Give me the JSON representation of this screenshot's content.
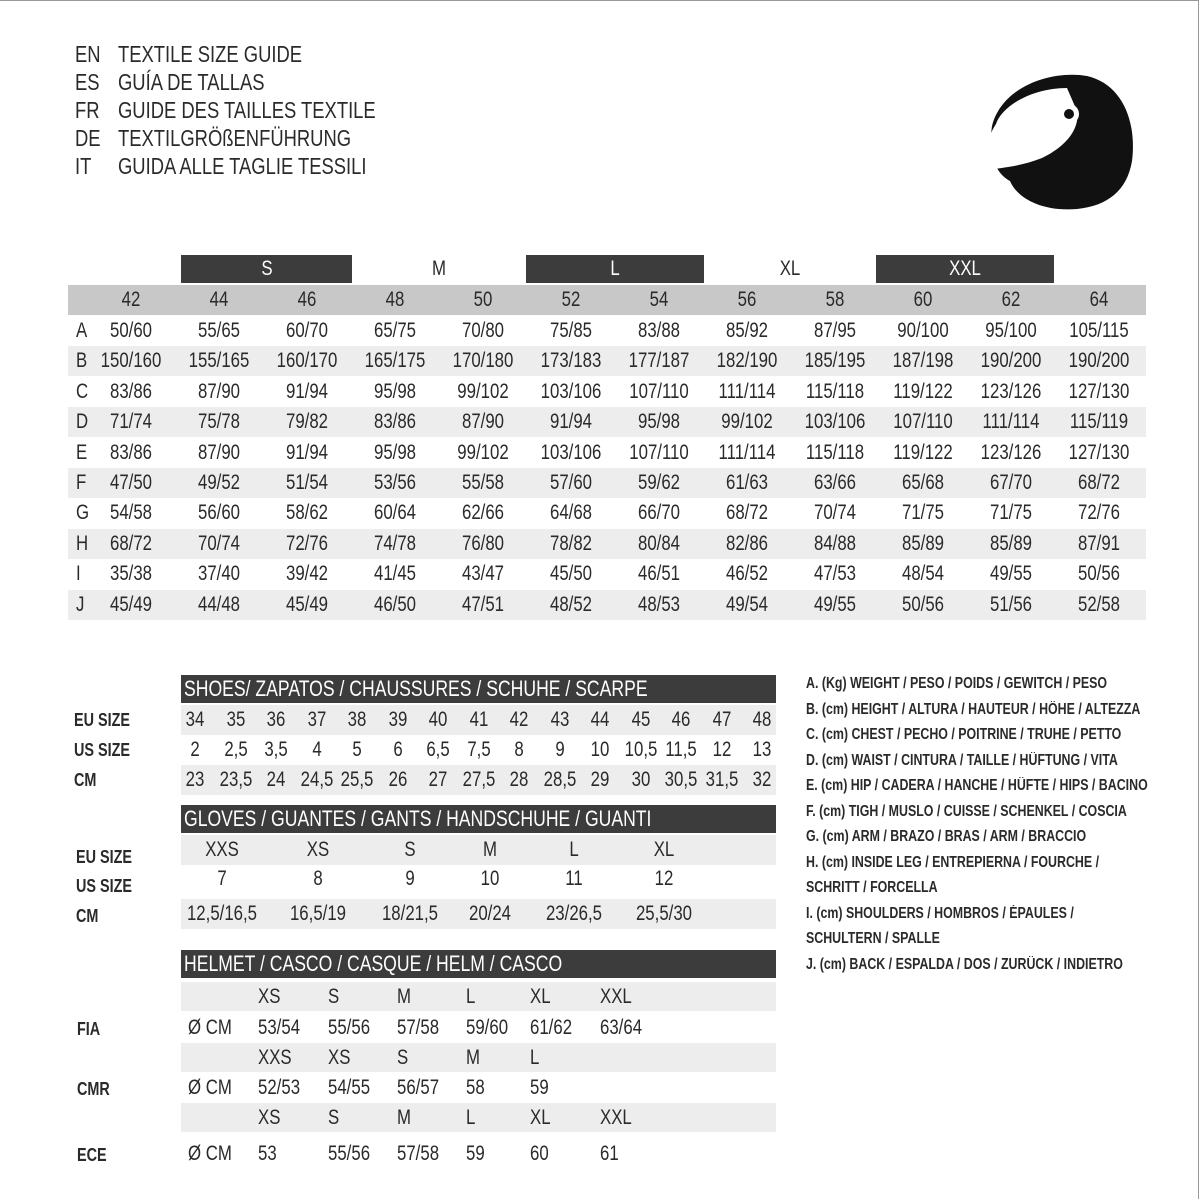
{
  "titles": [
    {
      "code": "EN",
      "text": "TEXTILE SIZE GUIDE"
    },
    {
      "code": "ES",
      "text": "GUÍA DE TALLAS"
    },
    {
      "code": "FR",
      "text": "GUIDE DES TAILLES TEXTILE"
    },
    {
      "code": "DE",
      "text": "TEXTILGRÖßENFÜHRUNG"
    },
    {
      "code": "IT",
      "text": "GUIDA ALLE TAGLIE TESSILI"
    }
  ],
  "icon": "helmet-icon",
  "colors": {
    "dark_header": "#3c3c3c",
    "gray_header": "#c8c8c8",
    "row_shade": "#ededed"
  },
  "textile": {
    "size_groups": [
      "S",
      "M",
      "L",
      "XL",
      "XXL"
    ],
    "sizes": [
      "42",
      "44",
      "46",
      "48",
      "50",
      "52",
      "54",
      "56",
      "58",
      "60",
      "62",
      "64"
    ],
    "rows": [
      {
        "label": "A",
        "values": [
          "50/60",
          "55/65",
          "60/70",
          "65/75",
          "70/80",
          "75/85",
          "83/88",
          "85/92",
          "87/95",
          "90/100",
          "95/100",
          "105/115"
        ]
      },
      {
        "label": "B",
        "values": [
          "150/160",
          "155/165",
          "160/170",
          "165/175",
          "170/180",
          "173/183",
          "177/187",
          "182/190",
          "185/195",
          "187/198",
          "190/200",
          "190/200"
        ]
      },
      {
        "label": "C",
        "values": [
          "83/86",
          "87/90",
          "91/94",
          "95/98",
          "99/102",
          "103/106",
          "107/110",
          "111/114",
          "115/118",
          "119/122",
          "123/126",
          "127/130"
        ]
      },
      {
        "label": "D",
        "values": [
          "71/74",
          "75/78",
          "79/82",
          "83/86",
          "87/90",
          "91/94",
          "95/98",
          "99/102",
          "103/106",
          "107/110",
          "111/114",
          "115/119"
        ]
      },
      {
        "label": "E",
        "values": [
          "83/86",
          "87/90",
          "91/94",
          "95/98",
          "99/102",
          "103/106",
          "107/110",
          "111/114",
          "115/118",
          "119/122",
          "123/126",
          "127/130"
        ]
      },
      {
        "label": "F",
        "values": [
          "47/50",
          "49/52",
          "51/54",
          "53/56",
          "55/58",
          "57/60",
          "59/62",
          "61/63",
          "63/66",
          "65/68",
          "67/70",
          "68/72"
        ]
      },
      {
        "label": "G",
        "values": [
          "54/58",
          "56/60",
          "58/62",
          "60/64",
          "62/66",
          "64/68",
          "66/70",
          "68/72",
          "70/74",
          "71/75",
          "71/75",
          "72/76"
        ]
      },
      {
        "label": "H",
        "values": [
          "68/72",
          "70/74",
          "72/76",
          "74/78",
          "76/80",
          "78/82",
          "80/84",
          "82/86",
          "84/88",
          "85/89",
          "85/89",
          "87/91"
        ]
      },
      {
        "label": "I",
        "values": [
          "35/38",
          "37/40",
          "39/42",
          "41/45",
          "43/47",
          "45/50",
          "46/51",
          "46/52",
          "47/53",
          "48/54",
          "49/55",
          "50/56"
        ]
      },
      {
        "label": "J",
        "values": [
          "45/49",
          "44/48",
          "45/49",
          "46/50",
          "47/51",
          "48/52",
          "48/53",
          "49/54",
          "49/55",
          "50/56",
          "51/56",
          "52/58"
        ]
      }
    ]
  },
  "shoes": {
    "title": "SHOES/ ZAPATOS / CHAUSSURES / SCHUHE / SCARPE",
    "rows": [
      {
        "label": "EU SIZE",
        "values": [
          "34",
          "35",
          "36",
          "37",
          "38",
          "39",
          "40",
          "41",
          "42",
          "43",
          "44",
          "45",
          "46",
          "47",
          "48"
        ]
      },
      {
        "label": "US SIZE",
        "values": [
          "2",
          "2,5",
          "3,5",
          "4",
          "5",
          "6",
          "6,5",
          "7,5",
          "8",
          "9",
          "10",
          "10,5",
          "11,5",
          "12",
          "13"
        ]
      },
      {
        "label": "CM",
        "values": [
          "23",
          "23,5",
          "24",
          "24,5",
          "25,5",
          "26",
          "27",
          "27,5",
          "28",
          "28,5",
          "29",
          "30",
          "30,5",
          "31,5",
          "32"
        ]
      }
    ]
  },
  "gloves": {
    "title": "GLOVES / GUANTES / GANTS / HANDSCHUHE / GUANTI",
    "rows": [
      {
        "label": "EU SIZE",
        "values": [
          "XXS",
          "XS",
          "S",
          "M",
          "L",
          "XL"
        ]
      },
      {
        "label": "US SIZE",
        "values": [
          "7",
          "8",
          "9",
          "10",
          "11",
          "12"
        ]
      },
      {
        "label": "CM",
        "values": [
          "12,5/16,5",
          "16,5/19",
          "18/21,5",
          "20/24",
          "23/26,5",
          "25,5/30"
        ]
      }
    ]
  },
  "helmet": {
    "title": "HELMET / CASCO / CASQUE / HELM / CASCO",
    "unit": "Ø CM",
    "standards": [
      {
        "label": "FIA",
        "sizes": [
          "XS",
          "S",
          "M",
          "L",
          "XL",
          "XXL"
        ],
        "values": [
          "53/54",
          "55/56",
          "57/58",
          "59/60",
          "61/62",
          "63/64"
        ]
      },
      {
        "label": "CMR",
        "sizes": [
          "XXS",
          "XS",
          "S",
          "M",
          "L"
        ],
        "values": [
          "52/53",
          "54/55",
          "56/57",
          "58",
          "59"
        ]
      },
      {
        "label": "ECE",
        "sizes": [
          "XS",
          "S",
          "M",
          "L",
          "XL",
          "XXL"
        ],
        "values": [
          "53",
          "55/56",
          "57/58",
          "59",
          "60",
          "61"
        ]
      }
    ]
  },
  "legend": [
    "A. (Kg) WEIGHT / PESO / POIDS / GEWITCH / PESO",
    "B. (cm) HEIGHT / ALTURA / HAUTEUR / HÖHE / ALTEZZA",
    "C. (cm) CHEST / PECHO / POITRINE / TRUHE / PETTO",
    "D. (cm) WAIST / CINTURA / TAILLE / HÜFTUNG / VITA",
    "E. (cm) HIP / CADERA / HANCHE / HÜFTE / HIPS / BACINO",
    "F.  (cm) TIGH / MUSLO / CUISSE / SCHENKEL / COSCIA",
    "G. (cm) ARM / BRAZO / BRAS / ARM / BRACCIO",
    "H. (cm) INSIDE LEG / ENTREPIERNA / FOURCHE /",
    "SCHRITT / FORCELLA",
    "I.  (cm) SHOULDERS / HOMBROS / ÉPAULES /",
    "SCHULTERN / SPALLE",
    "J. (cm) BACK / ESPALDA / DOS / ZURÜCK / INDIETRO"
  ]
}
